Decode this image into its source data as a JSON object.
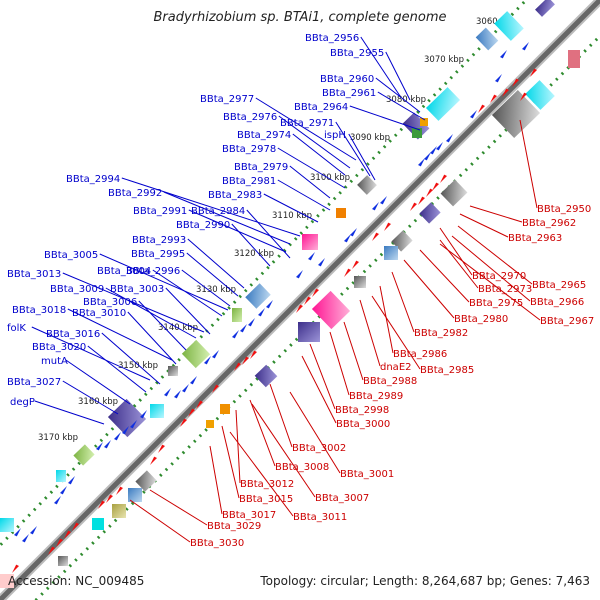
{
  "header": {
    "title": "Bradyrhizobium sp. BTAi1, complete genome"
  },
  "footer": {
    "accession": "Accession: NC_009485",
    "summary": "Topology: circular; Length: 8,264,687 bp; Genes: 7,463"
  },
  "colors": {
    "forward_label": "#0000cc",
    "reverse_label": "#cc0000",
    "backbone": "#777777",
    "tick": "#2e8b2e"
  },
  "kbp_ticks": [
    "3060 kbp",
    "3070 kbp",
    "3080 kbp",
    "3090 kbp",
    "3100 kbp",
    "3110 kbp",
    "3120 kbp",
    "3130 kbp",
    "3140 kbp",
    "3150 kbp",
    "3160 kbp",
    "3170 kbp"
  ],
  "forward_genes": [
    "BBta_2956",
    "BBta_2955",
    "BBta_2960",
    "BBta_2961",
    "BBta_2964",
    "BBta_2977",
    "BBta_2976",
    "BBta_2974",
    "BBta_2971",
    "ispH",
    "BBta_2978",
    "BBta_2979",
    "BBta_2981",
    "BBta_2983",
    "BBta_2994",
    "BBta_2992",
    "BBta_2991",
    "BBta_2984",
    "BBta_2990",
    "BBta_2993",
    "BBta_2995",
    "BBta_3005",
    "BBta_3004",
    "BBta_2996",
    "BBta_3013",
    "BBta_3009",
    "BBta_3003",
    "BBta_3006",
    "BBta_3018",
    "BBta_3010",
    "folK",
    "BBta_3016",
    "BBta_3020",
    "mutA",
    "BBta_3027",
    "degP"
  ],
  "reverse_genes": [
    "BBta_2950",
    "BBta_2962",
    "BBta_2963",
    "BBta_2970",
    "BBta_2965",
    "BBta_2973",
    "BBta_2966",
    "BBta_2975",
    "BBta_2967",
    "BBta_2980",
    "BBta_2982",
    "BBta_2986",
    "dnaE2",
    "BBta_2985",
    "BBta_2988",
    "BBta_2989",
    "BBta_2998",
    "BBta_3000",
    "BBta_3002",
    "BBta_3001",
    "BBta_3008",
    "BBta_3012",
    "BBta_3007",
    "BBta_3015",
    "BBta_3011",
    "BBta_3017",
    "BBta_3029",
    "BBta_3030"
  ]
}
